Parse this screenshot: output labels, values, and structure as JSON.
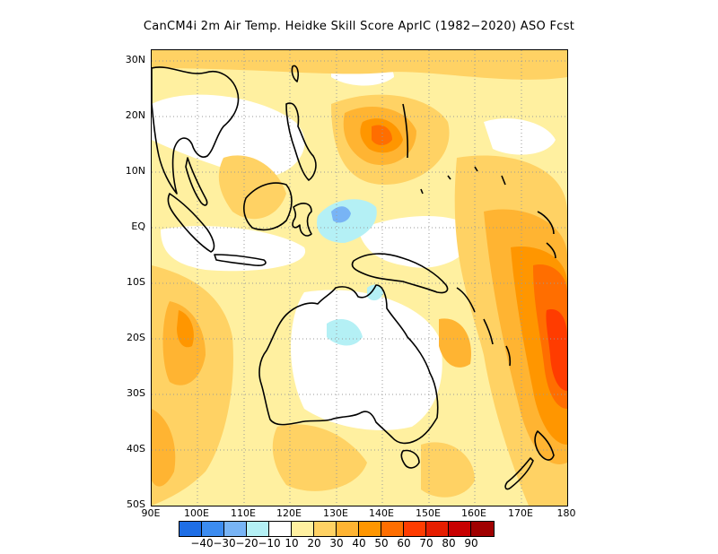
{
  "title": "CanCM4i  2m Air Temp. Heidke Skill Score AprIC (1982−2020) ASO Fcst",
  "lat_labels": [
    "30N",
    "20N",
    "10N",
    "EQ",
    "10S",
    "20S",
    "30S",
    "40S",
    "50S"
  ],
  "lon_labels": [
    "90E",
    "100E",
    "110E",
    "120E",
    "130E",
    "140E",
    "150E",
    "160E",
    "170E",
    "180"
  ],
  "legend": {
    "colors": [
      "#1e6ee6",
      "#3c8cf0",
      "#78b4f5",
      "#b4f0f5",
      "#ffffff",
      "#fff0a0",
      "#ffd264",
      "#ffb432",
      "#ff9600",
      "#ff6e00",
      "#ff3c00",
      "#e61e00",
      "#c80000",
      "#a00000"
    ],
    "labels": [
      "−40",
      "−30",
      "−20",
      "−10",
      "10",
      "20",
      "30",
      "40",
      "50",
      "60",
      "70",
      "80",
      "90"
    ]
  }
}
